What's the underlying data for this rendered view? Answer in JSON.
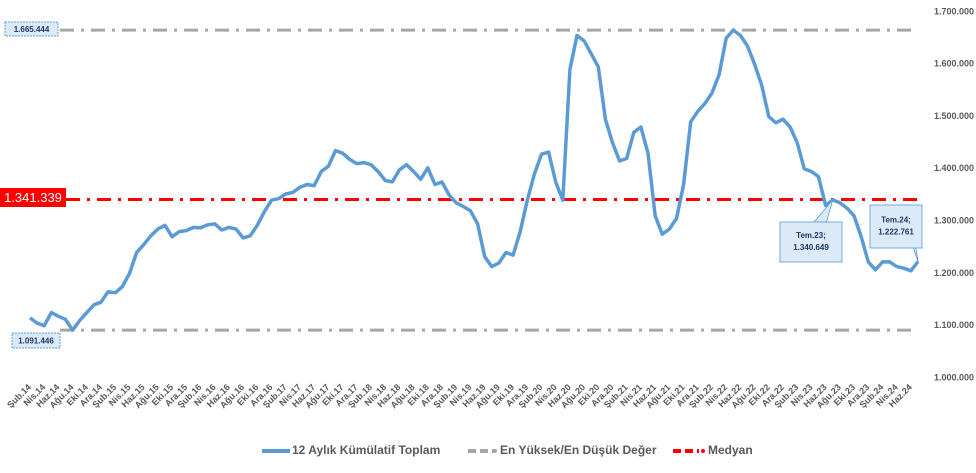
{
  "chart_data": {
    "type": "line",
    "categories": [
      "Şub.14",
      null,
      "Nis.14",
      null,
      "Haz.14",
      null,
      "Ağu.14",
      null,
      "Eki.14",
      null,
      "Ara.14",
      null,
      "Şub.15",
      null,
      "Nis.15",
      null,
      "Haz.15",
      null,
      "Ağu.15",
      null,
      "Eki.15",
      null,
      "Ara.15",
      null,
      "Şub.16",
      null,
      "Nis.16",
      null,
      "Haz.16",
      null,
      "Ağu.16",
      null,
      "Eki.16",
      null,
      "Ara.16",
      null,
      "Şub.17",
      null,
      "Nis.17",
      null,
      "Haz.17",
      null,
      "Ağu.17",
      null,
      "Eki.17",
      null,
      "Ara.17",
      null,
      "Şub.18",
      null,
      "Nis.18",
      null,
      "Haz.18",
      null,
      "Ağu.18",
      null,
      "Eki.18",
      null,
      "Ara.18",
      null,
      "Şub.19",
      null,
      "Nis.19",
      null,
      "Haz.19",
      null,
      "Ağu.19",
      null,
      "Eki.19",
      null,
      "Ara.19",
      null,
      "Şub.20",
      null,
      "Nis.20",
      null,
      "Haz.20",
      null,
      "Ağu.20",
      null,
      "Eki.20",
      null,
      "Ara.20",
      null,
      "Şub.21",
      null,
      "Nis.21",
      null,
      "Haz.21",
      null,
      "Ağu.21",
      null,
      "Eki.21",
      null,
      "Ara.21",
      null,
      "Şub.22",
      null,
      "Nis.22",
      null,
      "Haz.22",
      null,
      "Ağu.22",
      null,
      "Eki.22",
      null,
      "Ara.22",
      null,
      "Şub.23",
      null,
      "Nis.23",
      null,
      "Haz.23",
      null,
      "Ağu.23",
      null,
      "Eki.23",
      null,
      "Ara.23",
      null,
      "Şub.24",
      null,
      "Nis.24",
      null,
      "Haz.24",
      null
    ],
    "series": [
      {
        "name": "12 Aylık Kümülatif Toplam",
        "color": "#5b9bd5",
        "values": [
          1115000,
          1105000,
          1100000,
          1125000,
          1118000,
          1112000,
          1091446,
          1110000,
          1125000,
          1140000,
          1145000,
          1165000,
          1163000,
          1175000,
          1200000,
          1240000,
          1255000,
          1272000,
          1285000,
          1292000,
          1270000,
          1280000,
          1282000,
          1288000,
          1287000,
          1293000,
          1295000,
          1283000,
          1288000,
          1285000,
          1268000,
          1272000,
          1292000,
          1318000,
          1340000,
          1343000,
          1352000,
          1355000,
          1365000,
          1370000,
          1368000,
          1395000,
          1405000,
          1435000,
          1430000,
          1418000,
          1410000,
          1412000,
          1408000,
          1395000,
          1378000,
          1375000,
          1398000,
          1408000,
          1395000,
          1380000,
          1402000,
          1370000,
          1375000,
          1350000,
          1335000,
          1328000,
          1320000,
          1295000,
          1232000,
          1213000,
          1220000,
          1240000,
          1235000,
          1280000,
          1340000,
          1390000,
          1428000,
          1432000,
          1375000,
          1340000,
          1590000,
          1655000,
          1645000,
          1620000,
          1595000,
          1495000,
          1450000,
          1415000,
          1420000,
          1470000,
          1480000,
          1430000,
          1310000,
          1275000,
          1285000,
          1305000,
          1370000,
          1490000,
          1510000,
          1525000,
          1545000,
          1580000,
          1650000,
          1665444,
          1655000,
          1635000,
          1600000,
          1560000,
          1500000,
          1488000,
          1495000,
          1480000,
          1450000,
          1400000,
          1395000,
          1385000,
          1330000,
          1340649,
          1335000,
          1325000,
          1310000,
          1270000,
          1222000,
          1207000,
          1222000,
          1222000,
          1213000,
          1210000,
          1205000,
          1222761
        ]
      }
    ],
    "reference_lines": [
      {
        "name": "En Yüksek/En Düşük Değer",
        "color": "#a6a6a6",
        "values": [
          1665444,
          1091446
        ],
        "value_labels": [
          "1.665.444",
          "1.091.446"
        ]
      },
      {
        "name": "Medyan",
        "color": "#ff0000",
        "values": [
          1341339
        ],
        "value_labels": [
          "1.341.339"
        ]
      }
    ],
    "annotations": [
      {
        "value": 1340649,
        "label_lines": [
          "Tem.23;",
          "1.340.649"
        ]
      },
      {
        "value": 1222761,
        "label_lines": [
          "Tem.24;",
          "1.222.761"
        ]
      }
    ],
    "ylim": [
      1000000,
      1700000
    ],
    "yticks": [
      {
        "value": 1000000,
        "label": "1.000.000"
      },
      {
        "value": 1100000,
        "label": "1.100.000"
      },
      {
        "value": 1200000,
        "label": "1.200.000"
      },
      {
        "value": 1300000,
        "label": "1.300.000"
      },
      {
        "value": 1400000,
        "label": "1.400.000"
      },
      {
        "value": 1500000,
        "label": "1.500.000"
      },
      {
        "value": 1600000,
        "label": "1.600.000"
      },
      {
        "value": 1700000,
        "label": "1.700.000"
      }
    ],
    "grid": false
  }
}
